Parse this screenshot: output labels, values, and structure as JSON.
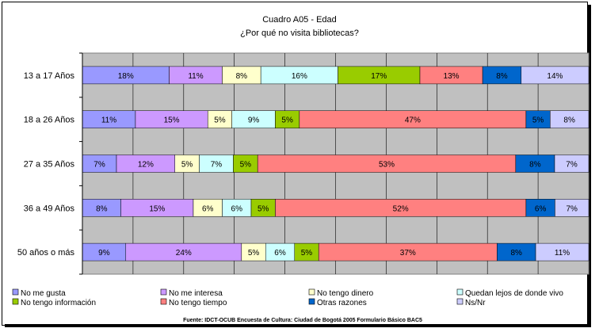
{
  "chart_data": {
    "type": "bar",
    "orientation": "horizontal",
    "stacked": "percent",
    "title": "Cuadro A05 - Edad",
    "subtitle": "¿Por qué no visita bibliotecas?",
    "categories": [
      "13 a 17 Años",
      "18 a 26 Años",
      "27 a 35 Años",
      "36 a 49 Años",
      "50 años o más"
    ],
    "series": [
      {
        "name": "No me gusta",
        "color": "#9999ff",
        "values": [
          18,
          11,
          7,
          8,
          9
        ]
      },
      {
        "name": "No me interesa",
        "color": "#cc99ff",
        "values": [
          11,
          15,
          12,
          15,
          24
        ]
      },
      {
        "name": "No tengo dinero",
        "color": "#ffffcc",
        "values": [
          8,
          5,
          5,
          6,
          5
        ]
      },
      {
        "name": "Quedan lejos de donde vivo",
        "color": "#ccffff",
        "values": [
          16,
          9,
          7,
          6,
          6
        ]
      },
      {
        "name": "No tengo información",
        "color": "#99cc00",
        "values": [
          17,
          5,
          5,
          5,
          5
        ]
      },
      {
        "name": "No tengo tiempo",
        "color": "#ff8080",
        "values": [
          13,
          47,
          53,
          52,
          37
        ]
      },
      {
        "name": "Otras razones",
        "color": "#0066cc",
        "values": [
          8,
          5,
          8,
          6,
          8
        ]
      },
      {
        "name": "Ns/Nr",
        "color": "#ccccff",
        "values": [
          14,
          8,
          7,
          7,
          11
        ]
      }
    ],
    "grid": true,
    "legend_position": "bottom",
    "source": "Fuente: IDCT-OCUB Encuesta de Cultura: Ciudad de Bogotá 2005 Formulario Básico BAC5",
    "plot_background": "#c0c0c0"
  }
}
